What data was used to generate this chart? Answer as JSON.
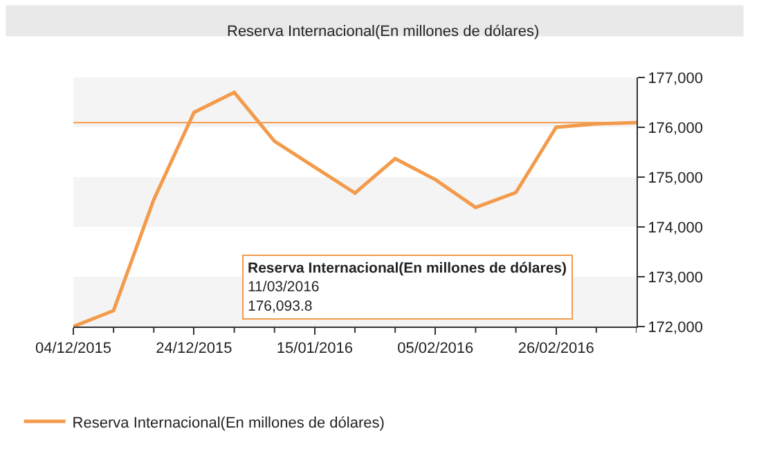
{
  "chart_data": {
    "type": "line",
    "title": "Reserva Internacional(En millones de dólares)",
    "categories": [
      "04/12/2015",
      null,
      null,
      "24/12/2015",
      null,
      null,
      "15/01/2016",
      null,
      null,
      "05/02/2016",
      null,
      null,
      "26/02/2016",
      null,
      null
    ],
    "series": [
      {
        "name": "Reserva Internacional(En millones de dólares)",
        "color": "#f39a4b",
        "values": [
          172000,
          172320,
          174550,
          176300,
          176700,
          175720,
          175200,
          174680,
          175370,
          174950,
          174390,
          174690,
          176000,
          176070,
          176093.8
        ]
      }
    ],
    "ylim": [
      172000,
      177000
    ],
    "yticks": [
      {
        "value": 172000,
        "label": "172,000"
      },
      {
        "value": 173000,
        "label": "173,000"
      },
      {
        "value": 174000,
        "label": "174,000"
      },
      {
        "value": 175000,
        "label": "175,000"
      },
      {
        "value": 176000,
        "label": "176,000"
      },
      {
        "value": 177000,
        "label": "177,000"
      }
    ],
    "legend": "bottom",
    "marker": "none",
    "line_style": "solid",
    "bands": [
      {
        "axis": "y",
        "from": 172000,
        "to": 173000,
        "color": "#f4f4f4"
      },
      {
        "axis": "y",
        "from": 174000,
        "to": 175000,
        "color": "#f4f4f4"
      },
      {
        "axis": "y",
        "from": 176000,
        "to": 177000,
        "color": "#f4f4f4"
      }
    ],
    "ref_lines": [
      {
        "axis": "y",
        "value": 176093.8,
        "color": "#f39a4b",
        "line_style": "solid"
      }
    ],
    "annotations": [
      "Reserva Internacional(En millones de dólares)\n11/03/2016\n176,093.8"
    ]
  }
}
